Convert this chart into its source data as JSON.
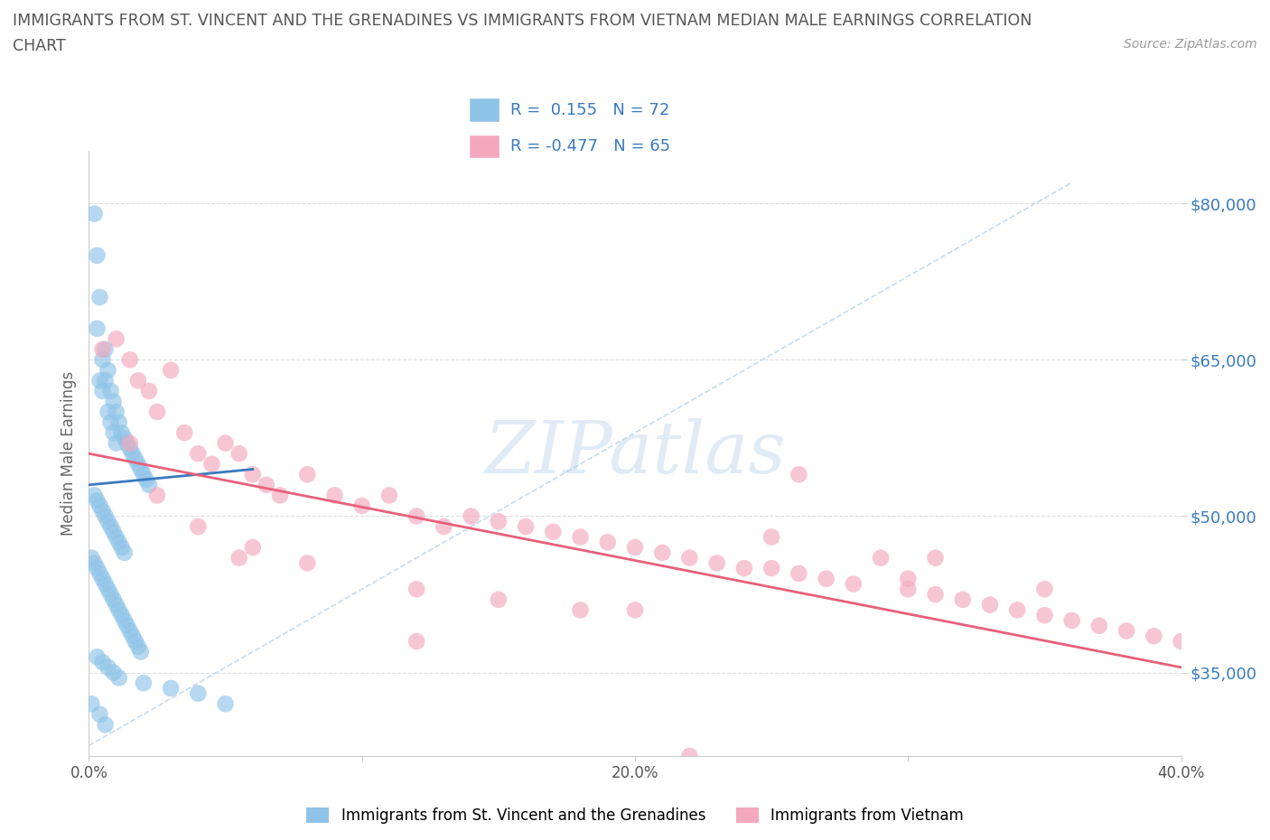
{
  "title_line1": "IMMIGRANTS FROM ST. VINCENT AND THE GRENADINES VS IMMIGRANTS FROM VIETNAM MEDIAN MALE EARNINGS CORRELATION",
  "title_line2": "CHART",
  "source_text": "Source: ZipAtlas.com",
  "ylabel": "Median Male Earnings",
  "legend_label1": "Immigrants from St. Vincent and the Grenadines",
  "legend_label2": "Immigrants from Vietnam",
  "R1": 0.155,
  "N1": 72,
  "R2": -0.477,
  "N2": 65,
  "color_blue": "#8fc4e8",
  "color_pink": "#f4a8be",
  "color_blue_line": "#3a7abf",
  "color_pink_line": "#e8607a",
  "color_dashed": "#b8d4e8",
  "watermark_color": "#a8c8e8",
  "xlim": [
    0.0,
    0.4
  ],
  "ylim": [
    27000,
    85000
  ],
  "yticks": [
    35000,
    50000,
    65000,
    80000
  ],
  "ytick_labels": [
    "$35,000",
    "$50,000",
    "$65,000",
    "$80,000"
  ],
  "xticks": [
    0.0,
    0.1,
    0.2,
    0.3,
    0.4
  ],
  "xtick_labels": [
    "0.0%",
    "",
    "20.0%",
    "",
    "40.0%"
  ],
  "blue_points_x": [
    0.001,
    0.002,
    0.003,
    0.003,
    0.004,
    0.004,
    0.005,
    0.005,
    0.006,
    0.006,
    0.007,
    0.007,
    0.008,
    0.008,
    0.009,
    0.009,
    0.01,
    0.01,
    0.011,
    0.012,
    0.013,
    0.014,
    0.015,
    0.016,
    0.017,
    0.018,
    0.019,
    0.02,
    0.021,
    0.022,
    0.002,
    0.003,
    0.004,
    0.005,
    0.006,
    0.007,
    0.008,
    0.009,
    0.01,
    0.011,
    0.012,
    0.013,
    0.001,
    0.002,
    0.003,
    0.004,
    0.005,
    0.006,
    0.007,
    0.008,
    0.009,
    0.01,
    0.011,
    0.012,
    0.013,
    0.014,
    0.015,
    0.016,
    0.017,
    0.018,
    0.019,
    0.003,
    0.005,
    0.007,
    0.009,
    0.011,
    0.02,
    0.03,
    0.04,
    0.05,
    0.004,
    0.006
  ],
  "blue_points_y": [
    32000,
    79000,
    75000,
    68000,
    63000,
    71000,
    65000,
    62000,
    66000,
    63000,
    64000,
    60000,
    62000,
    59000,
    61000,
    58000,
    60000,
    57000,
    59000,
    58000,
    57500,
    57000,
    56500,
    56000,
    55500,
    55000,
    54500,
    54000,
    53500,
    53000,
    52000,
    51500,
    51000,
    50500,
    50000,
    49500,
    49000,
    48500,
    48000,
    47500,
    47000,
    46500,
    46000,
    45500,
    45000,
    44500,
    44000,
    43500,
    43000,
    42500,
    42000,
    41500,
    41000,
    40500,
    40000,
    39500,
    39000,
    38500,
    38000,
    37500,
    37000,
    36500,
    36000,
    35500,
    35000,
    34500,
    34000,
    33500,
    33000,
    32000,
    31000,
    30000
  ],
  "pink_points_x": [
    0.005,
    0.01,
    0.015,
    0.018,
    0.022,
    0.025,
    0.03,
    0.035,
    0.04,
    0.045,
    0.05,
    0.055,
    0.06,
    0.065,
    0.07,
    0.08,
    0.09,
    0.1,
    0.11,
    0.12,
    0.13,
    0.14,
    0.15,
    0.16,
    0.17,
    0.18,
    0.19,
    0.2,
    0.21,
    0.22,
    0.23,
    0.24,
    0.25,
    0.26,
    0.27,
    0.28,
    0.29,
    0.3,
    0.31,
    0.32,
    0.33,
    0.34,
    0.35,
    0.36,
    0.37,
    0.38,
    0.39,
    0.4,
    0.025,
    0.04,
    0.06,
    0.08,
    0.12,
    0.15,
    0.2,
    0.25,
    0.3,
    0.35,
    0.015,
    0.055,
    0.12,
    0.26,
    0.31,
    0.22,
    0.18
  ],
  "pink_points_y": [
    66000,
    67000,
    65000,
    63000,
    62000,
    60000,
    64000,
    58000,
    56000,
    55000,
    57000,
    56000,
    54000,
    53000,
    52000,
    54000,
    52000,
    51000,
    52000,
    50000,
    49000,
    50000,
    49500,
    49000,
    48500,
    48000,
    47500,
    47000,
    46500,
    46000,
    45500,
    45000,
    48000,
    44500,
    44000,
    43500,
    46000,
    43000,
    42500,
    42000,
    41500,
    41000,
    40500,
    40000,
    39500,
    39000,
    38500,
    38000,
    52000,
    49000,
    47000,
    45500,
    43000,
    42000,
    41000,
    45000,
    44000,
    43000,
    57000,
    46000,
    38000,
    54000,
    46000,
    27000,
    41000
  ],
  "blue_line": [
    [
      0.0,
      0.06
    ],
    [
      53000,
      54500
    ]
  ],
  "pink_line": [
    [
      0.0,
      0.4
    ],
    [
      56000,
      35500
    ]
  ],
  "diag_line": [
    [
      0.0,
      0.36
    ],
    [
      28000,
      82000
    ]
  ]
}
